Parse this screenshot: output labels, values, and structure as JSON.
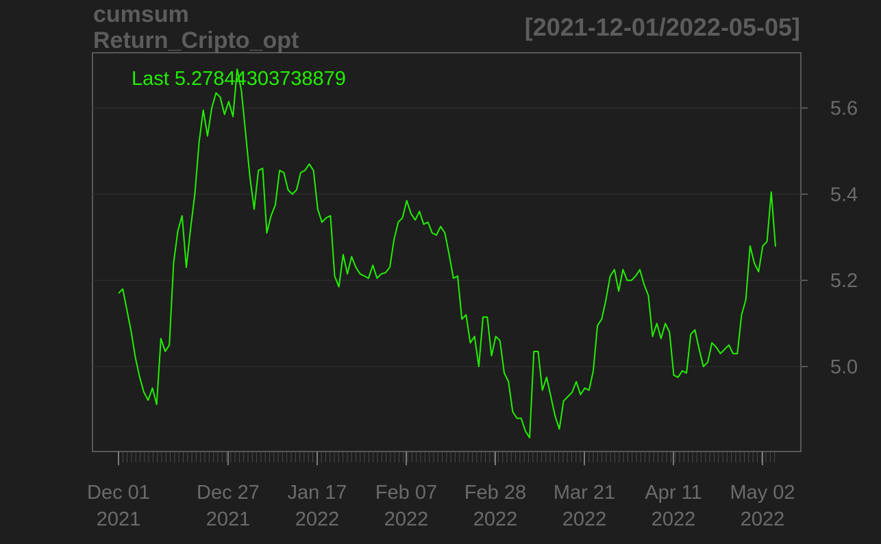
{
  "chart_data": {
    "type": "line",
    "title_line1": "cumsum",
    "title_line2": "Return_Cripto_opt",
    "date_range_label": "[2021-12-01/2022-05-05]",
    "last_label": "Last 5.27844303738879",
    "xlabel": "",
    "ylabel": "",
    "ylim": [
      4.8,
      5.7
    ],
    "y_ticks": [
      "5.0",
      "5.2",
      "5.4",
      "5.6"
    ],
    "x_ticks": [
      {
        "line1": "Dec 01",
        "line2": "2021"
      },
      {
        "line1": "Dec 27",
        "line2": "2021"
      },
      {
        "line1": "Jan 17",
        "line2": "2022"
      },
      {
        "line1": "Feb 07",
        "line2": "2022"
      },
      {
        "line1": "Feb 28",
        "line2": "2022"
      },
      {
        "line1": "Mar 21",
        "line2": "2022"
      },
      {
        "line1": "Apr 11",
        "line2": "2022"
      },
      {
        "line1": "May 02",
        "line2": "2022"
      }
    ],
    "grid": true,
    "series": [
      {
        "color": "#22ee00",
        "values": [
          5.17,
          5.18,
          5.13,
          5.08,
          5.02,
          4.975,
          4.94,
          4.922,
          4.95,
          4.912,
          5.065,
          5.035,
          5.05,
          5.24,
          5.315,
          5.35,
          5.23,
          5.32,
          5.4,
          5.52,
          5.595,
          5.535,
          5.6,
          5.635,
          5.625,
          5.585,
          5.615,
          5.58,
          5.69,
          5.64,
          5.54,
          5.44,
          5.365,
          5.455,
          5.46,
          5.31,
          5.35,
          5.375,
          5.455,
          5.45,
          5.41,
          5.4,
          5.41,
          5.45,
          5.455,
          5.47,
          5.455,
          5.365,
          5.335,
          5.345,
          5.35,
          5.21,
          5.185,
          5.26,
          5.215,
          5.255,
          5.23,
          5.215,
          5.21,
          5.205,
          5.235,
          5.205,
          5.215,
          5.218,
          5.23,
          5.295,
          5.335,
          5.345,
          5.385,
          5.355,
          5.34,
          5.36,
          5.33,
          5.335,
          5.31,
          5.305,
          5.325,
          5.31,
          5.26,
          5.205,
          5.21,
          5.11,
          5.12,
          5.055,
          5.07,
          5.0,
          5.115,
          5.115,
          5.025,
          5.07,
          5.06,
          4.985,
          4.965,
          4.895,
          4.88,
          4.88,
          4.85,
          4.835,
          5.035,
          5.035,
          4.945,
          4.975,
          4.93,
          4.885,
          4.855,
          4.92,
          4.93,
          4.94,
          4.965,
          4.935,
          4.95,
          4.945,
          4.99,
          5.095,
          5.11,
          5.155,
          5.21,
          5.225,
          5.175,
          5.225,
          5.2,
          5.2,
          5.21,
          5.225,
          5.19,
          5.165,
          5.07,
          5.1,
          5.065,
          5.1,
          5.08,
          4.98,
          4.975,
          4.99,
          4.985,
          5.075,
          5.085,
          5.04,
          5.0,
          5.01,
          5.055,
          5.045,
          5.03,
          5.04,
          5.05,
          5.03,
          5.03,
          5.12,
          5.155,
          5.28,
          5.24,
          5.22,
          5.28,
          5.29,
          5.405,
          5.278
        ]
      }
    ]
  }
}
